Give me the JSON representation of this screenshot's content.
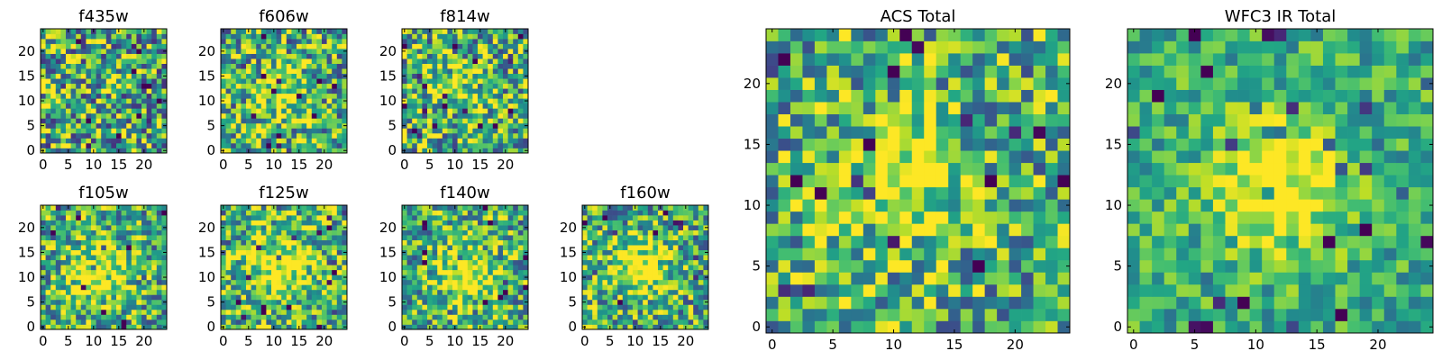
{
  "chart_data": [
    {
      "type": "heatmap",
      "id": "f435w",
      "title": "f435w",
      "grid_size": 25,
      "xlim": [
        -0.5,
        24.5
      ],
      "ylim": [
        -0.5,
        24.5
      ],
      "xticks": [
        0,
        5,
        10,
        15,
        20
      ],
      "yticks": [
        0,
        5,
        10,
        15,
        20
      ],
      "xtick_labels": [
        "0",
        "5",
        "10",
        "15",
        "20"
      ],
      "ytick_labels": [
        "0",
        "5",
        "10",
        "15",
        "20"
      ],
      "colormap": "viridis",
      "vrange": [
        0,
        1
      ],
      "seed": 435,
      "noise": 0.6,
      "blobs": []
    },
    {
      "type": "heatmap",
      "id": "f606w",
      "title": "f606w",
      "grid_size": 25,
      "xlim": [
        -0.5,
        24.5
      ],
      "ylim": [
        -0.5,
        24.5
      ],
      "xticks": [
        0,
        5,
        10,
        15,
        20
      ],
      "yticks": [
        0,
        5,
        10,
        15,
        20
      ],
      "xtick_labels": [
        "0",
        "5",
        "10",
        "15",
        "20"
      ],
      "ytick_labels": [
        "0",
        "5",
        "10",
        "15",
        "20"
      ],
      "colormap": "viridis",
      "vrange": [
        0,
        1
      ],
      "seed": 606,
      "noise": 0.55,
      "blobs": [
        {
          "cx": 11,
          "cy": 11,
          "sigma": 4,
          "amp": 0.3
        }
      ]
    },
    {
      "type": "heatmap",
      "id": "f814w",
      "title": "f814w",
      "grid_size": 25,
      "xlim": [
        -0.5,
        24.5
      ],
      "ylim": [
        -0.5,
        24.5
      ],
      "xticks": [
        0,
        5,
        10,
        15,
        20
      ],
      "yticks": [
        0,
        5,
        10,
        15,
        20
      ],
      "xtick_labels": [
        "0",
        "5",
        "10",
        "15",
        "20"
      ],
      "ytick_labels": [
        "0",
        "5",
        "10",
        "15",
        "20"
      ],
      "colormap": "viridis",
      "vrange": [
        0,
        1
      ],
      "seed": 814,
      "noise": 0.55,
      "blobs": [
        {
          "cx": 11,
          "cy": 12,
          "sigma": 4,
          "amp": 0.25
        }
      ]
    },
    {
      "type": "heatmap",
      "id": "f105w",
      "title": "f105w",
      "grid_size": 25,
      "xlim": [
        -0.5,
        24.5
      ],
      "ylim": [
        -0.5,
        24.5
      ],
      "xticks": [
        0,
        5,
        10,
        15,
        20
      ],
      "yticks": [
        0,
        5,
        10,
        15,
        20
      ],
      "xtick_labels": [
        "0",
        "5",
        "10",
        "15",
        "20"
      ],
      "ytick_labels": [
        "0",
        "5",
        "10",
        "15",
        "20"
      ],
      "colormap": "viridis",
      "vrange": [
        0,
        1
      ],
      "seed": 105,
      "noise": 0.5,
      "blobs": [
        {
          "cx": 11,
          "cy": 11,
          "sigma": 4,
          "amp": 0.5
        }
      ]
    },
    {
      "type": "heatmap",
      "id": "f125w",
      "title": "f125w",
      "grid_size": 25,
      "xlim": [
        -0.5,
        24.5
      ],
      "ylim": [
        -0.5,
        24.5
      ],
      "xticks": [
        0,
        5,
        10,
        15,
        20
      ],
      "yticks": [
        0,
        5,
        10,
        15,
        20
      ],
      "xtick_labels": [
        "0",
        "5",
        "10",
        "15",
        "20"
      ],
      "ytick_labels": [
        "0",
        "5",
        "10",
        "15",
        "20"
      ],
      "colormap": "viridis",
      "vrange": [
        0,
        1
      ],
      "seed": 125,
      "noise": 0.5,
      "blobs": [
        {
          "cx": 11,
          "cy": 12,
          "sigma": 5,
          "amp": 0.4
        }
      ]
    },
    {
      "type": "heatmap",
      "id": "f140w",
      "title": "f140w",
      "grid_size": 25,
      "xlim": [
        -0.5,
        24.5
      ],
      "ylim": [
        -0.5,
        24.5
      ],
      "xticks": [
        0,
        5,
        10,
        15,
        20
      ],
      "yticks": [
        0,
        5,
        10,
        15,
        20
      ],
      "xtick_labels": [
        "0",
        "5",
        "10",
        "15",
        "20"
      ],
      "ytick_labels": [
        "0",
        "5",
        "10",
        "15",
        "20"
      ],
      "colormap": "viridis",
      "vrange": [
        0,
        1
      ],
      "seed": 140,
      "noise": 0.5,
      "blobs": [
        {
          "cx": 12,
          "cy": 11,
          "sigma": 4,
          "amp": 0.45
        }
      ]
    },
    {
      "type": "heatmap",
      "id": "f160w",
      "title": "f160w",
      "grid_size": 25,
      "xlim": [
        -0.5,
        24.5
      ],
      "ylim": [
        -0.5,
        24.5
      ],
      "xticks": [
        0,
        5,
        10,
        15,
        20
      ],
      "yticks": [
        0,
        5,
        10,
        15,
        20
      ],
      "xtick_labels": [
        "0",
        "5",
        "10",
        "15",
        "20"
      ],
      "ytick_labels": [
        "0",
        "5",
        "10",
        "15",
        "20"
      ],
      "colormap": "viridis",
      "vrange": [
        0,
        1
      ],
      "seed": 160,
      "noise": 0.5,
      "blobs": [
        {
          "cx": 11,
          "cy": 12,
          "sigma": 4,
          "amp": 0.45
        }
      ]
    },
    {
      "type": "heatmap",
      "id": "acs-total",
      "title": "ACS Total",
      "grid_size": 25,
      "xlim": [
        -0.5,
        24.5
      ],
      "ylim": [
        -0.5,
        24.5
      ],
      "xticks": [
        0,
        5,
        10,
        15,
        20
      ],
      "yticks": [
        0,
        5,
        10,
        15,
        20
      ],
      "xtick_labels": [
        "0",
        "5",
        "10",
        "15",
        "20"
      ],
      "ytick_labels": [
        "0",
        "5",
        "10",
        "15",
        "20"
      ],
      "colormap": "viridis",
      "vrange": [
        0,
        1
      ],
      "seed": 777,
      "noise": 0.5,
      "blobs": [
        {
          "cx": 11,
          "cy": 12,
          "sigma": 4,
          "amp": 0.35
        }
      ]
    },
    {
      "type": "heatmap",
      "id": "wfc3-ir-total",
      "title": "WFC3 IR Total",
      "grid_size": 25,
      "xlim": [
        -0.5,
        24.5
      ],
      "ylim": [
        -0.5,
        24.5
      ],
      "xticks": [
        0,
        5,
        10,
        15,
        20
      ],
      "yticks": [
        0,
        5,
        10,
        15,
        20
      ],
      "xtick_labels": [
        "0",
        "5",
        "10",
        "15",
        "20"
      ],
      "ytick_labels": [
        "0",
        "5",
        "10",
        "15",
        "20"
      ],
      "colormap": "viridis",
      "vrange": [
        0,
        1
      ],
      "seed": 999,
      "noise": 0.3,
      "blobs": [
        {
          "cx": 12,
          "cy": 12,
          "sigma": 3.5,
          "amp": 0.55
        }
      ]
    }
  ]
}
